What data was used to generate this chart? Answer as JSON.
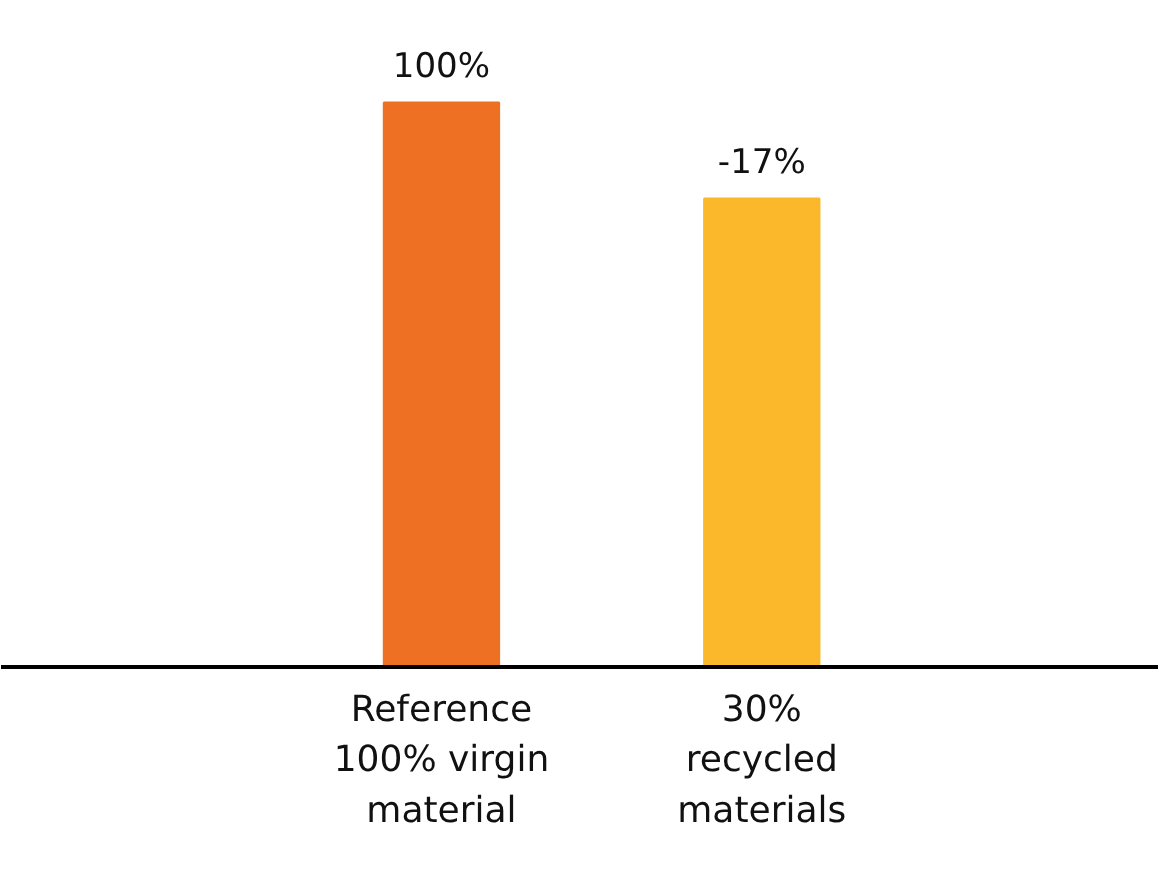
{
  "chart_data": {
    "type": "bar",
    "categories": [
      "Reference\n100% virgin\nmaterial",
      "30%\nrecycled\nmaterials"
    ],
    "values": [
      100,
      83
    ],
    "colors": [
      "#ee7023",
      "#fbb82a"
    ],
    "value_labels": [
      "100%",
      null
    ],
    "annotations": [
      {
        "text": "-17%",
        "x": "30%\nrecycled\nmaterials",
        "y": 83
      }
    ]
  }
}
